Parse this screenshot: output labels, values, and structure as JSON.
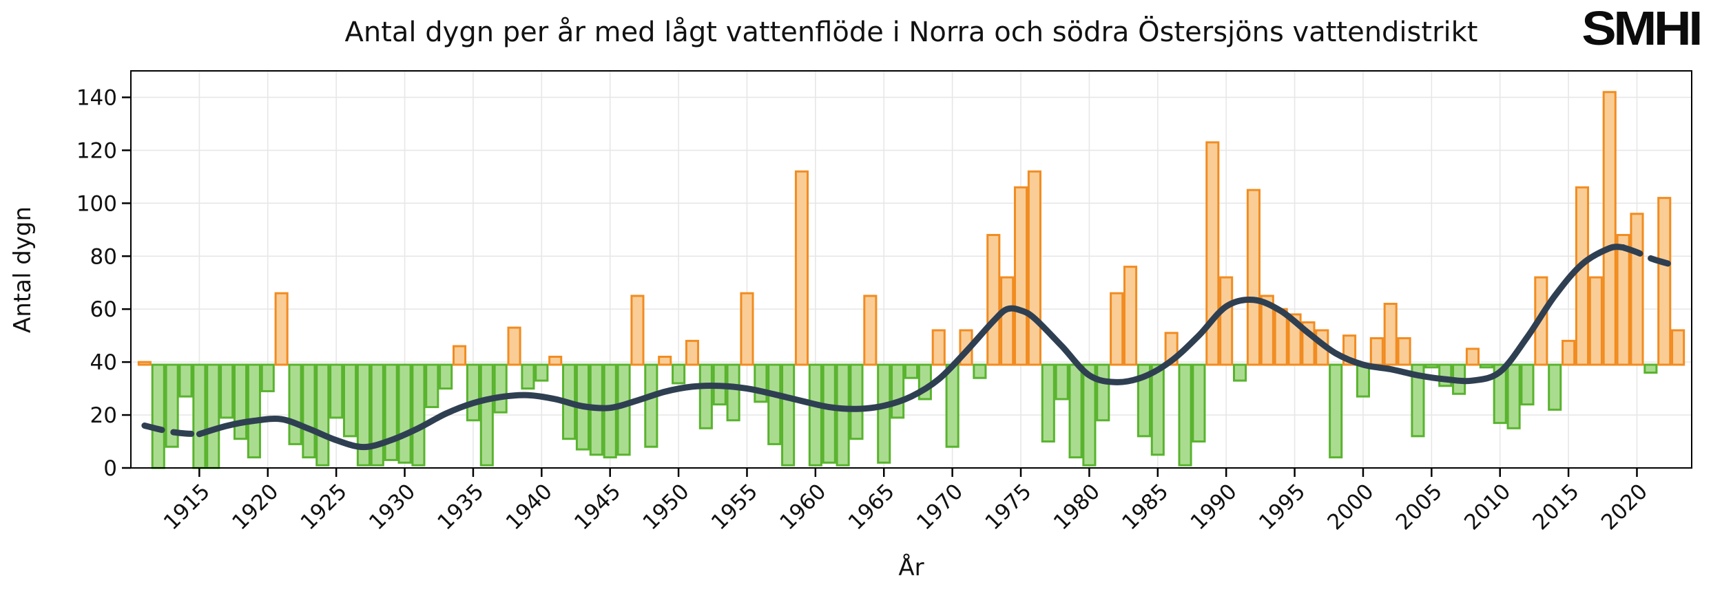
{
  "header": {
    "logo_text": "SMHI"
  },
  "chart_data": {
    "type": "bar",
    "title": "Antal dygn per år med lågt vattenflöde i Norra och södra Östersjöns vattendistrikt",
    "xlabel": "År",
    "ylabel": "Antal dygn",
    "baseline": 39,
    "ylim": [
      0,
      150
    ],
    "xlim": [
      1910,
      2024
    ],
    "yticks": [
      0,
      20,
      40,
      60,
      80,
      100,
      120,
      140
    ],
    "xticks": [
      1915,
      1920,
      1925,
      1930,
      1935,
      1940,
      1945,
      1950,
      1955,
      1960,
      1965,
      1970,
      1975,
      1980,
      1985,
      1990,
      1995,
      2000,
      2005,
      2010,
      2015,
      2020
    ],
    "grid": true,
    "legend": "none",
    "years": [
      1911,
      1912,
      1913,
      1914,
      1915,
      1916,
      1917,
      1918,
      1919,
      1920,
      1921,
      1922,
      1923,
      1924,
      1925,
      1926,
      1927,
      1928,
      1929,
      1930,
      1931,
      1932,
      1933,
      1934,
      1935,
      1936,
      1937,
      1938,
      1939,
      1940,
      1941,
      1942,
      1943,
      1944,
      1945,
      1946,
      1947,
      1948,
      1949,
      1950,
      1951,
      1952,
      1953,
      1954,
      1955,
      1956,
      1957,
      1958,
      1959,
      1960,
      1961,
      1962,
      1963,
      1964,
      1965,
      1966,
      1967,
      1968,
      1969,
      1970,
      1971,
      1972,
      1973,
      1974,
      1975,
      1976,
      1977,
      1978,
      1979,
      1980,
      1981,
      1982,
      1983,
      1984,
      1985,
      1986,
      1987,
      1988,
      1989,
      1990,
      1991,
      1992,
      1993,
      1994,
      1995,
      1996,
      1997,
      1998,
      1999,
      2000,
      2001,
      2002,
      2003,
      2004,
      2005,
      2006,
      2007,
      2008,
      2009,
      2010,
      2011,
      2012,
      2013,
      2014,
      2015,
      2016,
      2017,
      2018,
      2019,
      2020,
      2021,
      2022,
      2023
    ],
    "values": [
      40,
      0,
      8,
      27,
      0,
      0,
      19,
      11,
      4,
      29,
      66,
      9,
      4,
      1,
      19,
      12,
      1,
      1,
      3,
      2,
      1,
      23,
      30,
      46,
      18,
      1,
      21,
      53,
      30,
      33,
      42,
      11,
      7,
      5,
      4,
      5,
      65,
      8,
      42,
      32,
      48,
      15,
      24,
      18,
      66,
      25,
      9,
      1,
      112,
      1,
      2,
      1,
      11,
      65,
      2,
      19,
      34,
      26,
      52,
      8,
      52,
      34,
      88,
      72,
      106,
      112,
      10,
      26,
      4,
      1,
      18,
      66,
      76,
      12,
      5,
      51,
      1,
      10,
      123,
      72,
      33,
      105,
      65,
      60,
      58,
      55,
      52,
      4,
      50,
      27,
      49,
      62,
      49,
      12,
      38,
      31,
      28,
      45,
      38,
      17,
      15,
      24,
      72,
      22,
      48,
      106,
      72,
      142,
      88,
      96,
      36,
      102,
      52
    ],
    "bar_colors": {
      "above_baseline": {
        "fill": "#FACD96",
        "stroke": "#F18C21"
      },
      "below_baseline": {
        "fill": "#AADC90",
        "stroke": "#59B32E"
      }
    },
    "trend": {
      "name": "smoothed-trend",
      "color": "#2F3F52",
      "stroke_width": 9,
      "dashed_head": [
        [
          1911,
          16
        ],
        [
          1912,
          14.7
        ],
        [
          1913,
          13.6
        ],
        [
          1914,
          13.0
        ],
        [
          1915,
          12.8
        ]
      ],
      "solid": [
        [
          1915,
          12.8
        ],
        [
          1917,
          15.9
        ],
        [
          1919,
          17.8
        ],
        [
          1921,
          18.4
        ],
        [
          1923,
          14.8
        ],
        [
          1925,
          10.5
        ],
        [
          1927,
          7.9
        ],
        [
          1929,
          10.5
        ],
        [
          1931,
          15
        ],
        [
          1933,
          20.5
        ],
        [
          1935,
          24.5
        ],
        [
          1937,
          26.8
        ],
        [
          1939,
          27.5
        ],
        [
          1941,
          26
        ],
        [
          1943,
          23.3
        ],
        [
          1945,
          22.7
        ],
        [
          1947,
          25.5
        ],
        [
          1949,
          28.8
        ],
        [
          1951,
          30.7
        ],
        [
          1953,
          31
        ],
        [
          1955,
          30
        ],
        [
          1957,
          27.8
        ],
        [
          1959,
          25.3
        ],
        [
          1961,
          23
        ],
        [
          1963,
          22.3
        ],
        [
          1965,
          23.5
        ],
        [
          1967,
          27
        ],
        [
          1969,
          33.5
        ],
        [
          1971,
          44
        ],
        [
          1973,
          55.5
        ],
        [
          1974,
          60
        ],
        [
          1975,
          59.5
        ],
        [
          1976,
          56.5
        ],
        [
          1978,
          46
        ],
        [
          1980,
          35
        ],
        [
          1982,
          32.4
        ],
        [
          1984,
          34.5
        ],
        [
          1986,
          40.5
        ],
        [
          1988,
          50
        ],
        [
          1990,
          61
        ],
        [
          1992,
          63.5
        ],
        [
          1994,
          59.3
        ],
        [
          1996,
          51
        ],
        [
          1998,
          43.3
        ],
        [
          2000,
          39
        ],
        [
          2002,
          37.3
        ],
        [
          2004,
          35
        ],
        [
          2006,
          33.5
        ],
        [
          2008,
          33
        ],
        [
          2010,
          36.3
        ],
        [
          2012,
          49.5
        ],
        [
          2014,
          65
        ],
        [
          2016,
          77
        ],
        [
          2018,
          83
        ],
        [
          2019,
          83.3
        ]
      ],
      "dashed_tail": [
        [
          2019,
          83.3
        ],
        [
          2020,
          81.5
        ],
        [
          2021,
          79.2
        ],
        [
          2022,
          77.6
        ],
        [
          2023,
          76.2
        ]
      ]
    },
    "axis_colors": {
      "grid": "#E7E7E7",
      "spine": "#000000",
      "tick": "#000000",
      "label": "#111111"
    }
  }
}
